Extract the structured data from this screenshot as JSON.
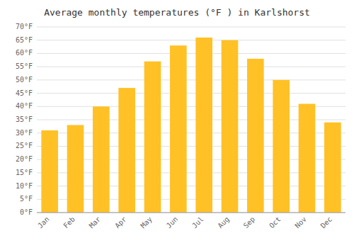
{
  "chart_data": {
    "type": "bar",
    "title": "Average monthly temperatures (°F ) in Karlshorst",
    "categories": [
      "Jan",
      "Feb",
      "Mar",
      "Apr",
      "May",
      "Jun",
      "Jul",
      "Aug",
      "Sep",
      "Oct",
      "Nov",
      "Dec"
    ],
    "values": [
      31,
      33,
      40,
      47,
      57,
      63,
      66,
      65,
      58,
      50,
      41,
      34
    ],
    "color": "#FFC125",
    "ylim": [
      0,
      70
    ],
    "yticks": [
      {
        "value": 0,
        "label": "0°F"
      },
      {
        "value": 5,
        "label": "5°F"
      },
      {
        "value": 10,
        "label": "10°F"
      },
      {
        "value": 15,
        "label": "15°F"
      },
      {
        "value": 20,
        "label": "20°F"
      },
      {
        "value": 25,
        "label": "25°F"
      },
      {
        "value": 30,
        "label": "30°F"
      },
      {
        "value": 35,
        "label": "35°F"
      },
      {
        "value": 40,
        "label": "40°F"
      },
      {
        "value": 45,
        "label": "45°F"
      },
      {
        "value": 50,
        "label": "50°F"
      },
      {
        "value": 55,
        "label": "55°F"
      },
      {
        "value": 60,
        "label": "60°F"
      },
      {
        "value": 65,
        "label": "65°F"
      },
      {
        "value": 70,
        "label": "70°F"
      }
    ],
    "grid": true
  }
}
